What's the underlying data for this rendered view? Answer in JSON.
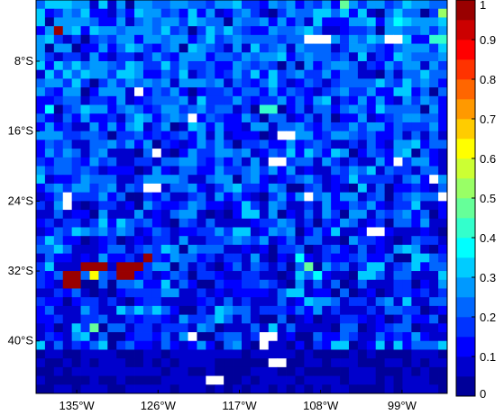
{
  "map": {
    "projection": "lat-lon grid",
    "grid_cols": 46,
    "grid_rows": 45,
    "lon_range": [
      -139.5,
      -94.0
    ],
    "lat_range": [
      -46.0,
      -1.0
    ],
    "lat_ticks": [
      {
        "label": "8°S",
        "lat": -8
      },
      {
        "label": "16°S",
        "lat": -16
      },
      {
        "label": "24°S",
        "lat": -24
      },
      {
        "label": "32°S",
        "lat": -32
      },
      {
        "label": "40°S",
        "lat": -40
      }
    ],
    "lon_ticks": [
      {
        "label": "135°W",
        "lon": -135
      },
      {
        "label": "126°W",
        "lon": -126
      },
      {
        "label": "117°W",
        "lon": -117
      },
      {
        "label": "108°W",
        "lon": -108
      },
      {
        "label": "99°W",
        "lon": -99
      }
    ]
  },
  "colorbar": {
    "colormap": "jet",
    "range": [
      0,
      1
    ],
    "levels": 20,
    "tick_labels": [
      "0",
      "0.1",
      "0.2",
      "0.3",
      "0.4",
      "0.5",
      "0.6",
      "0.7",
      "0.8",
      "0.9",
      "1"
    ],
    "tick_values": [
      0,
      0.1,
      0.2,
      0.3,
      0.4,
      0.5,
      0.6,
      0.7,
      0.8,
      0.9,
      1.0
    ]
  },
  "field": {
    "note_missing": "white cells = no data",
    "seed": 7,
    "missing_cells": [
      [
        30,
        4
      ],
      [
        31,
        4
      ],
      [
        32,
        4
      ],
      [
        39,
        4
      ],
      [
        40,
        4
      ],
      [
        11,
        10
      ],
      [
        17,
        13
      ],
      [
        27,
        15
      ],
      [
        28,
        15
      ],
      [
        13,
        17
      ],
      [
        26,
        18
      ],
      [
        27,
        18
      ],
      [
        12,
        21
      ],
      [
        13,
        21
      ],
      [
        40,
        18
      ],
      [
        44,
        20
      ],
      [
        3,
        22
      ],
      [
        30,
        22
      ],
      [
        3,
        23
      ],
      [
        45,
        22
      ],
      [
        37,
        26
      ],
      [
        38,
        26
      ],
      [
        17,
        38
      ],
      [
        25,
        38
      ],
      [
        26,
        38
      ],
      [
        25,
        39
      ],
      [
        26,
        41
      ],
      [
        27,
        41
      ],
      [
        19,
        43
      ],
      [
        20,
        43
      ]
    ],
    "hot_cells": [
      [
        2,
        3,
        1.0
      ],
      [
        12,
        29,
        1.0
      ],
      [
        5,
        30,
        0.95
      ],
      [
        6,
        30,
        0.95
      ],
      [
        7,
        30,
        0.95
      ],
      [
        9,
        30,
        0.95
      ],
      [
        10,
        30,
        0.95
      ],
      [
        11,
        30,
        0.95
      ],
      [
        3,
        31,
        1.0
      ],
      [
        4,
        31,
        0.97
      ],
      [
        6,
        31,
        0.64
      ],
      [
        9,
        31,
        1.0
      ],
      [
        10,
        31,
        0.96
      ],
      [
        3,
        32,
        1.0
      ],
      [
        4,
        32,
        0.98
      ]
    ],
    "bright_cells": [
      [
        34,
        0,
        0.48
      ],
      [
        45,
        1,
        0.5
      ],
      [
        44,
        4,
        0.42
      ],
      [
        45,
        4,
        0.42
      ],
      [
        40,
        2,
        0.35
      ],
      [
        1,
        12,
        0.38
      ],
      [
        25,
        12,
        0.42
      ],
      [
        26,
        12,
        0.44
      ],
      [
        6,
        37,
        0.45
      ],
      [
        30,
        30,
        0.48
      ],
      [
        29,
        29,
        0.36
      ],
      [
        31,
        31,
        0.38
      ],
      [
        28,
        33,
        0.3
      ],
      [
        29,
        33,
        0.3
      ],
      [
        30,
        34,
        0.3
      ],
      [
        31,
        34,
        0.28
      ],
      [
        37,
        30,
        0.32
      ],
      [
        38,
        30,
        0.34
      ],
      [
        36,
        31,
        0.3
      ],
      [
        37,
        31,
        0.3
      ],
      [
        42,
        29,
        0.32
      ],
      [
        43,
        29,
        0.33
      ],
      [
        42,
        30,
        0.3
      ],
      [
        23,
        24,
        0.32
      ],
      [
        24,
        24,
        0.3
      ],
      [
        22,
        26,
        0.31
      ],
      [
        35,
        19,
        0.28
      ],
      [
        36,
        21,
        0.3
      ],
      [
        17,
        23,
        0.28
      ],
      [
        14,
        28,
        0.3
      ],
      [
        15,
        28,
        0.29
      ]
    ]
  }
}
